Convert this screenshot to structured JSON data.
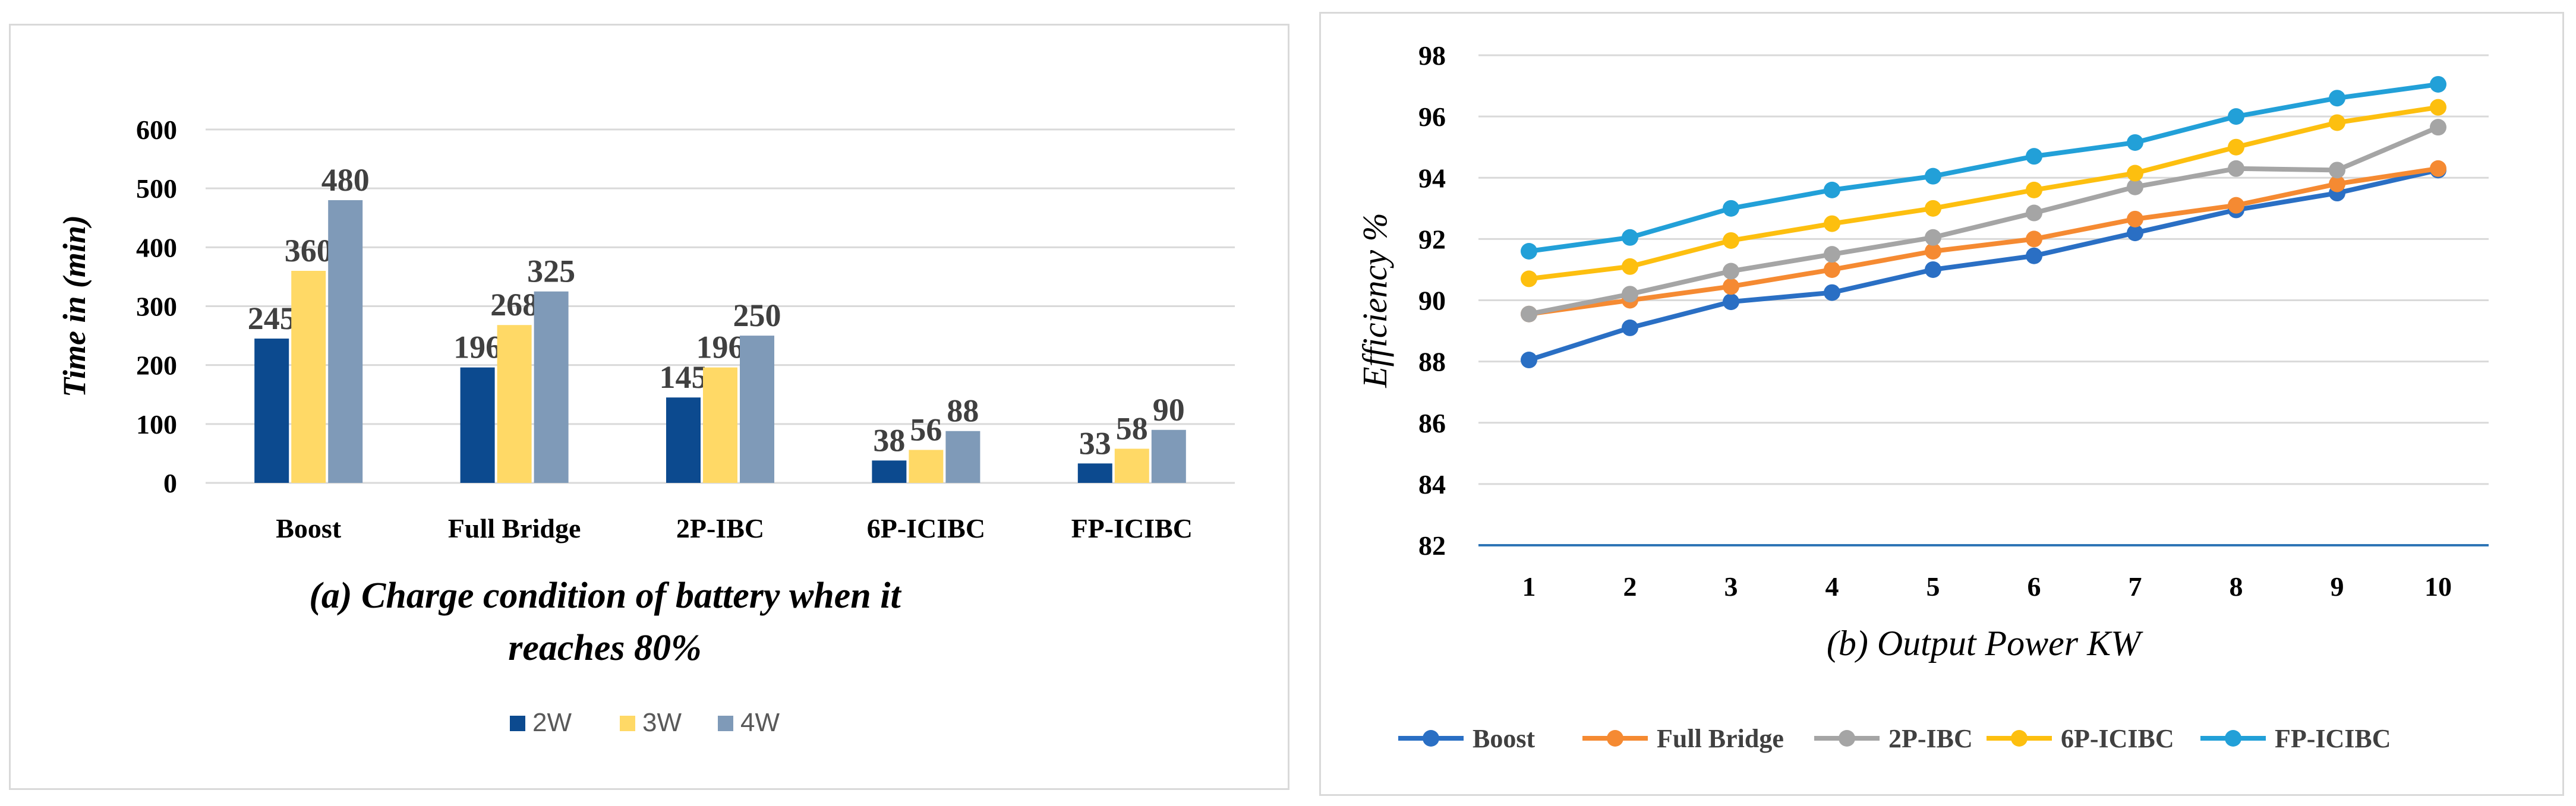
{
  "colors": {
    "grid": "#d9d9d9",
    "axis_text": "#000000",
    "data_label": "#404040",
    "bar_series": [
      "#0c4a8f",
      "#ffd966",
      "#7f9ab8"
    ],
    "line_series": [
      "#2a6fc4",
      "#f58a32",
      "#a5a5a5",
      "#fdbf0f",
      "#22a0d8"
    ],
    "baseline_b": "#2e75b6"
  },
  "chart_data": [
    {
      "type": "bar",
      "title": "(a) Charge condition of battery when it reaches 80%",
      "title_lines": [
        "(a) Charge condition of battery when it",
        "reaches 80%"
      ],
      "xlabel": "",
      "ylabel": "Time in (min)",
      "ylim": [
        0,
        600
      ],
      "yticks": [
        "0",
        "100",
        "200",
        "300",
        "400",
        "500",
        "600"
      ],
      "categories": [
        "Boost",
        "Full Bridge",
        "2P-IBC",
        "6P-ICIBC",
        "FP-ICIBC"
      ],
      "series": [
        {
          "name": "2W",
          "values": [
            245,
            196,
            145,
            38,
            33
          ]
        },
        {
          "name": "3W",
          "values": [
            360,
            268,
            196,
            56,
            58
          ]
        },
        {
          "name": "4W",
          "values": [
            480,
            325,
            250,
            88,
            90
          ]
        }
      ],
      "grid": true,
      "legend": "bottom"
    },
    {
      "type": "line",
      "title": "(b) Output Power KW",
      "xlabel": "(b) Output Power KW",
      "ylabel": "Efficiency %",
      "x": [
        1,
        2,
        3,
        4,
        5,
        6,
        7,
        8,
        9,
        10
      ],
      "xticks": [
        "1",
        "2",
        "3",
        "4",
        "5",
        "6",
        "7",
        "8",
        "9",
        "10"
      ],
      "ylim": [
        82,
        98
      ],
      "yticks": [
        "82",
        "84",
        "86",
        "88",
        "90",
        "92",
        "94",
        "96",
        "98"
      ],
      "series": [
        {
          "name": "Boost",
          "values": [
            88.05,
            89.1,
            89.95,
            90.25,
            91.0,
            91.45,
            92.2,
            92.95,
            93.5,
            94.25
          ]
        },
        {
          "name": "Full Bridge",
          "values": [
            89.55,
            90.0,
            90.45,
            91.0,
            91.6,
            92.0,
            92.65,
            93.1,
            93.8,
            94.3
          ]
        },
        {
          "name": "2P-IBC",
          "values": [
            89.55,
            90.2,
            90.95,
            91.5,
            92.05,
            92.85,
            93.7,
            94.3,
            94.25,
            95.65
          ]
        },
        {
          "name": "6P-ICIBC",
          "values": [
            90.7,
            91.1,
            91.95,
            92.5,
            93.0,
            93.6,
            94.15,
            95.0,
            95.8,
            96.3
          ]
        },
        {
          "name": "FP-ICIBC",
          "values": [
            91.6,
            92.05,
            93.0,
            93.6,
            94.05,
            94.7,
            95.15,
            96.0,
            96.6,
            97.05
          ]
        }
      ],
      "grid": true,
      "legend": "bottom"
    }
  ]
}
